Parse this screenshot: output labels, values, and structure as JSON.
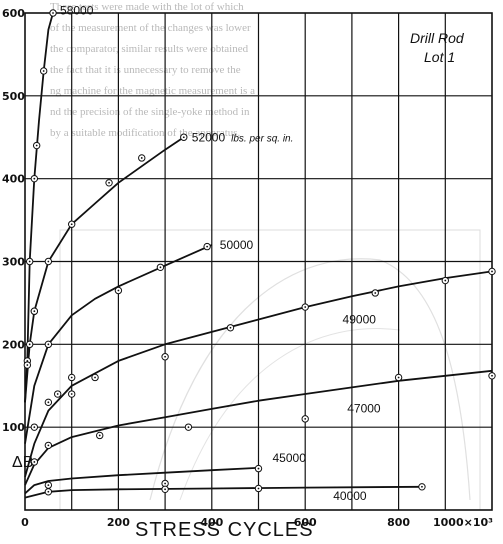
{
  "background_text": [
    "These tests were made with the lot of which",
    "of the measurement of the changes was lower",
    "the comparator, similar results were obtained",
    "the fact that it is unnecessary to remove the",
    "ng machine for the magnetic measurement is a",
    "nd the precision of the single-yoke method in",
    "by a suitable modification of the apparatus."
  ],
  "chart_data": {
    "type": "line",
    "title": "Drill Rod",
    "subtitle": "Lot 1",
    "xlabel": "STRESS CYCLES",
    "ylabel": "ΔB",
    "xlim": [
      0,
      1000
    ],
    "ylim": [
      0,
      600
    ],
    "x_ticks": [
      "0",
      "200",
      "400",
      "600",
      "800"
    ],
    "x_tick_values": [
      0,
      200,
      400,
      600,
      800
    ],
    "x_end_tick": "1000×10³",
    "y_ticks": [
      "100",
      "200",
      "300",
      "400",
      "500",
      "600"
    ],
    "y_tick_values": [
      100,
      200,
      300,
      400,
      500,
      600
    ],
    "grid": true,
    "series": [
      {
        "name": "58000",
        "label_suffix": "",
        "points": [
          [
            0,
            130
          ],
          [
            5,
            180
          ],
          [
            10,
            300
          ],
          [
            15,
            350
          ],
          [
            20,
            400
          ],
          [
            30,
            470
          ],
          [
            40,
            530
          ],
          [
            50,
            580
          ],
          [
            60,
            600
          ]
        ],
        "markers": [
          [
            5,
            180
          ],
          [
            10,
            300
          ],
          [
            20,
            400
          ],
          [
            25,
            440
          ],
          [
            40,
            530
          ],
          [
            60,
            600
          ]
        ]
      },
      {
        "name": "52000",
        "label_suffix": "lbs. per sq. in.",
        "points": [
          [
            0,
            130
          ],
          [
            10,
            200
          ],
          [
            20,
            240
          ],
          [
            50,
            300
          ],
          [
            100,
            345
          ],
          [
            150,
            370
          ],
          [
            200,
            395
          ],
          [
            250,
            415
          ],
          [
            300,
            435
          ],
          [
            340,
            450
          ]
        ],
        "markers": [
          [
            10,
            200
          ],
          [
            20,
            240
          ],
          [
            50,
            300
          ],
          [
            100,
            345
          ],
          [
            180,
            395
          ],
          [
            250,
            425
          ],
          [
            340,
            450
          ]
        ]
      },
      {
        "name": "50000",
        "label_suffix": "",
        "points": [
          [
            0,
            80
          ],
          [
            20,
            150
          ],
          [
            50,
            200
          ],
          [
            100,
            235
          ],
          [
            150,
            255
          ],
          [
            200,
            270
          ],
          [
            300,
            295
          ],
          [
            400,
            320
          ]
        ],
        "markers": [
          [
            5,
            175
          ],
          [
            20,
            240
          ],
          [
            50,
            200
          ],
          [
            100,
            140
          ],
          [
            150,
            160
          ],
          [
            200,
            265
          ],
          [
            290,
            293
          ],
          [
            390,
            318
          ]
        ]
      },
      {
        "name": "49000",
        "label_suffix": "",
        "points": [
          [
            0,
            40
          ],
          [
            20,
            80
          ],
          [
            50,
            120
          ],
          [
            100,
            150
          ],
          [
            200,
            180
          ],
          [
            300,
            200
          ],
          [
            400,
            215
          ],
          [
            500,
            230
          ],
          [
            600,
            245
          ],
          [
            700,
            258
          ],
          [
            800,
            270
          ],
          [
            900,
            280
          ],
          [
            1000,
            288
          ]
        ],
        "markers": [
          [
            20,
            100
          ],
          [
            50,
            130
          ],
          [
            70,
            140
          ],
          [
            100,
            160
          ],
          [
            300,
            185
          ],
          [
            440,
            220
          ],
          [
            600,
            245
          ],
          [
            750,
            262
          ],
          [
            900,
            277
          ],
          [
            1000,
            288
          ]
        ]
      },
      {
        "name": "47000",
        "label_suffix": "",
        "points": [
          [
            0,
            30
          ],
          [
            20,
            55
          ],
          [
            50,
            75
          ],
          [
            100,
            88
          ],
          [
            200,
            102
          ],
          [
            300,
            112
          ],
          [
            400,
            122
          ],
          [
            500,
            132
          ],
          [
            600,
            140
          ],
          [
            700,
            148
          ],
          [
            800,
            156
          ],
          [
            900,
            162
          ],
          [
            1000,
            168
          ]
        ],
        "markers": [
          [
            20,
            58
          ],
          [
            50,
            78
          ],
          [
            160,
            90
          ],
          [
            350,
            100
          ],
          [
            600,
            110
          ],
          [
            800,
            160
          ],
          [
            1000,
            162
          ]
        ]
      },
      {
        "name": "45000",
        "label_suffix": "",
        "points": [
          [
            0,
            20
          ],
          [
            20,
            30
          ],
          [
            50,
            35
          ],
          [
            100,
            38
          ],
          [
            200,
            42
          ],
          [
            300,
            45
          ],
          [
            400,
            48
          ],
          [
            500,
            51
          ]
        ],
        "markers": [
          [
            50,
            30
          ],
          [
            300,
            32
          ],
          [
            500,
            50
          ]
        ]
      },
      {
        "name": "40000",
        "label_suffix": "",
        "points": [
          [
            0,
            15
          ],
          [
            50,
            22
          ],
          [
            100,
            24
          ],
          [
            200,
            25
          ],
          [
            400,
            26
          ],
          [
            600,
            27
          ],
          [
            850,
            28
          ]
        ],
        "markers": [
          [
            50,
            22
          ],
          [
            300,
            25
          ],
          [
            500,
            26
          ],
          [
            850,
            28
          ]
        ]
      }
    ]
  }
}
